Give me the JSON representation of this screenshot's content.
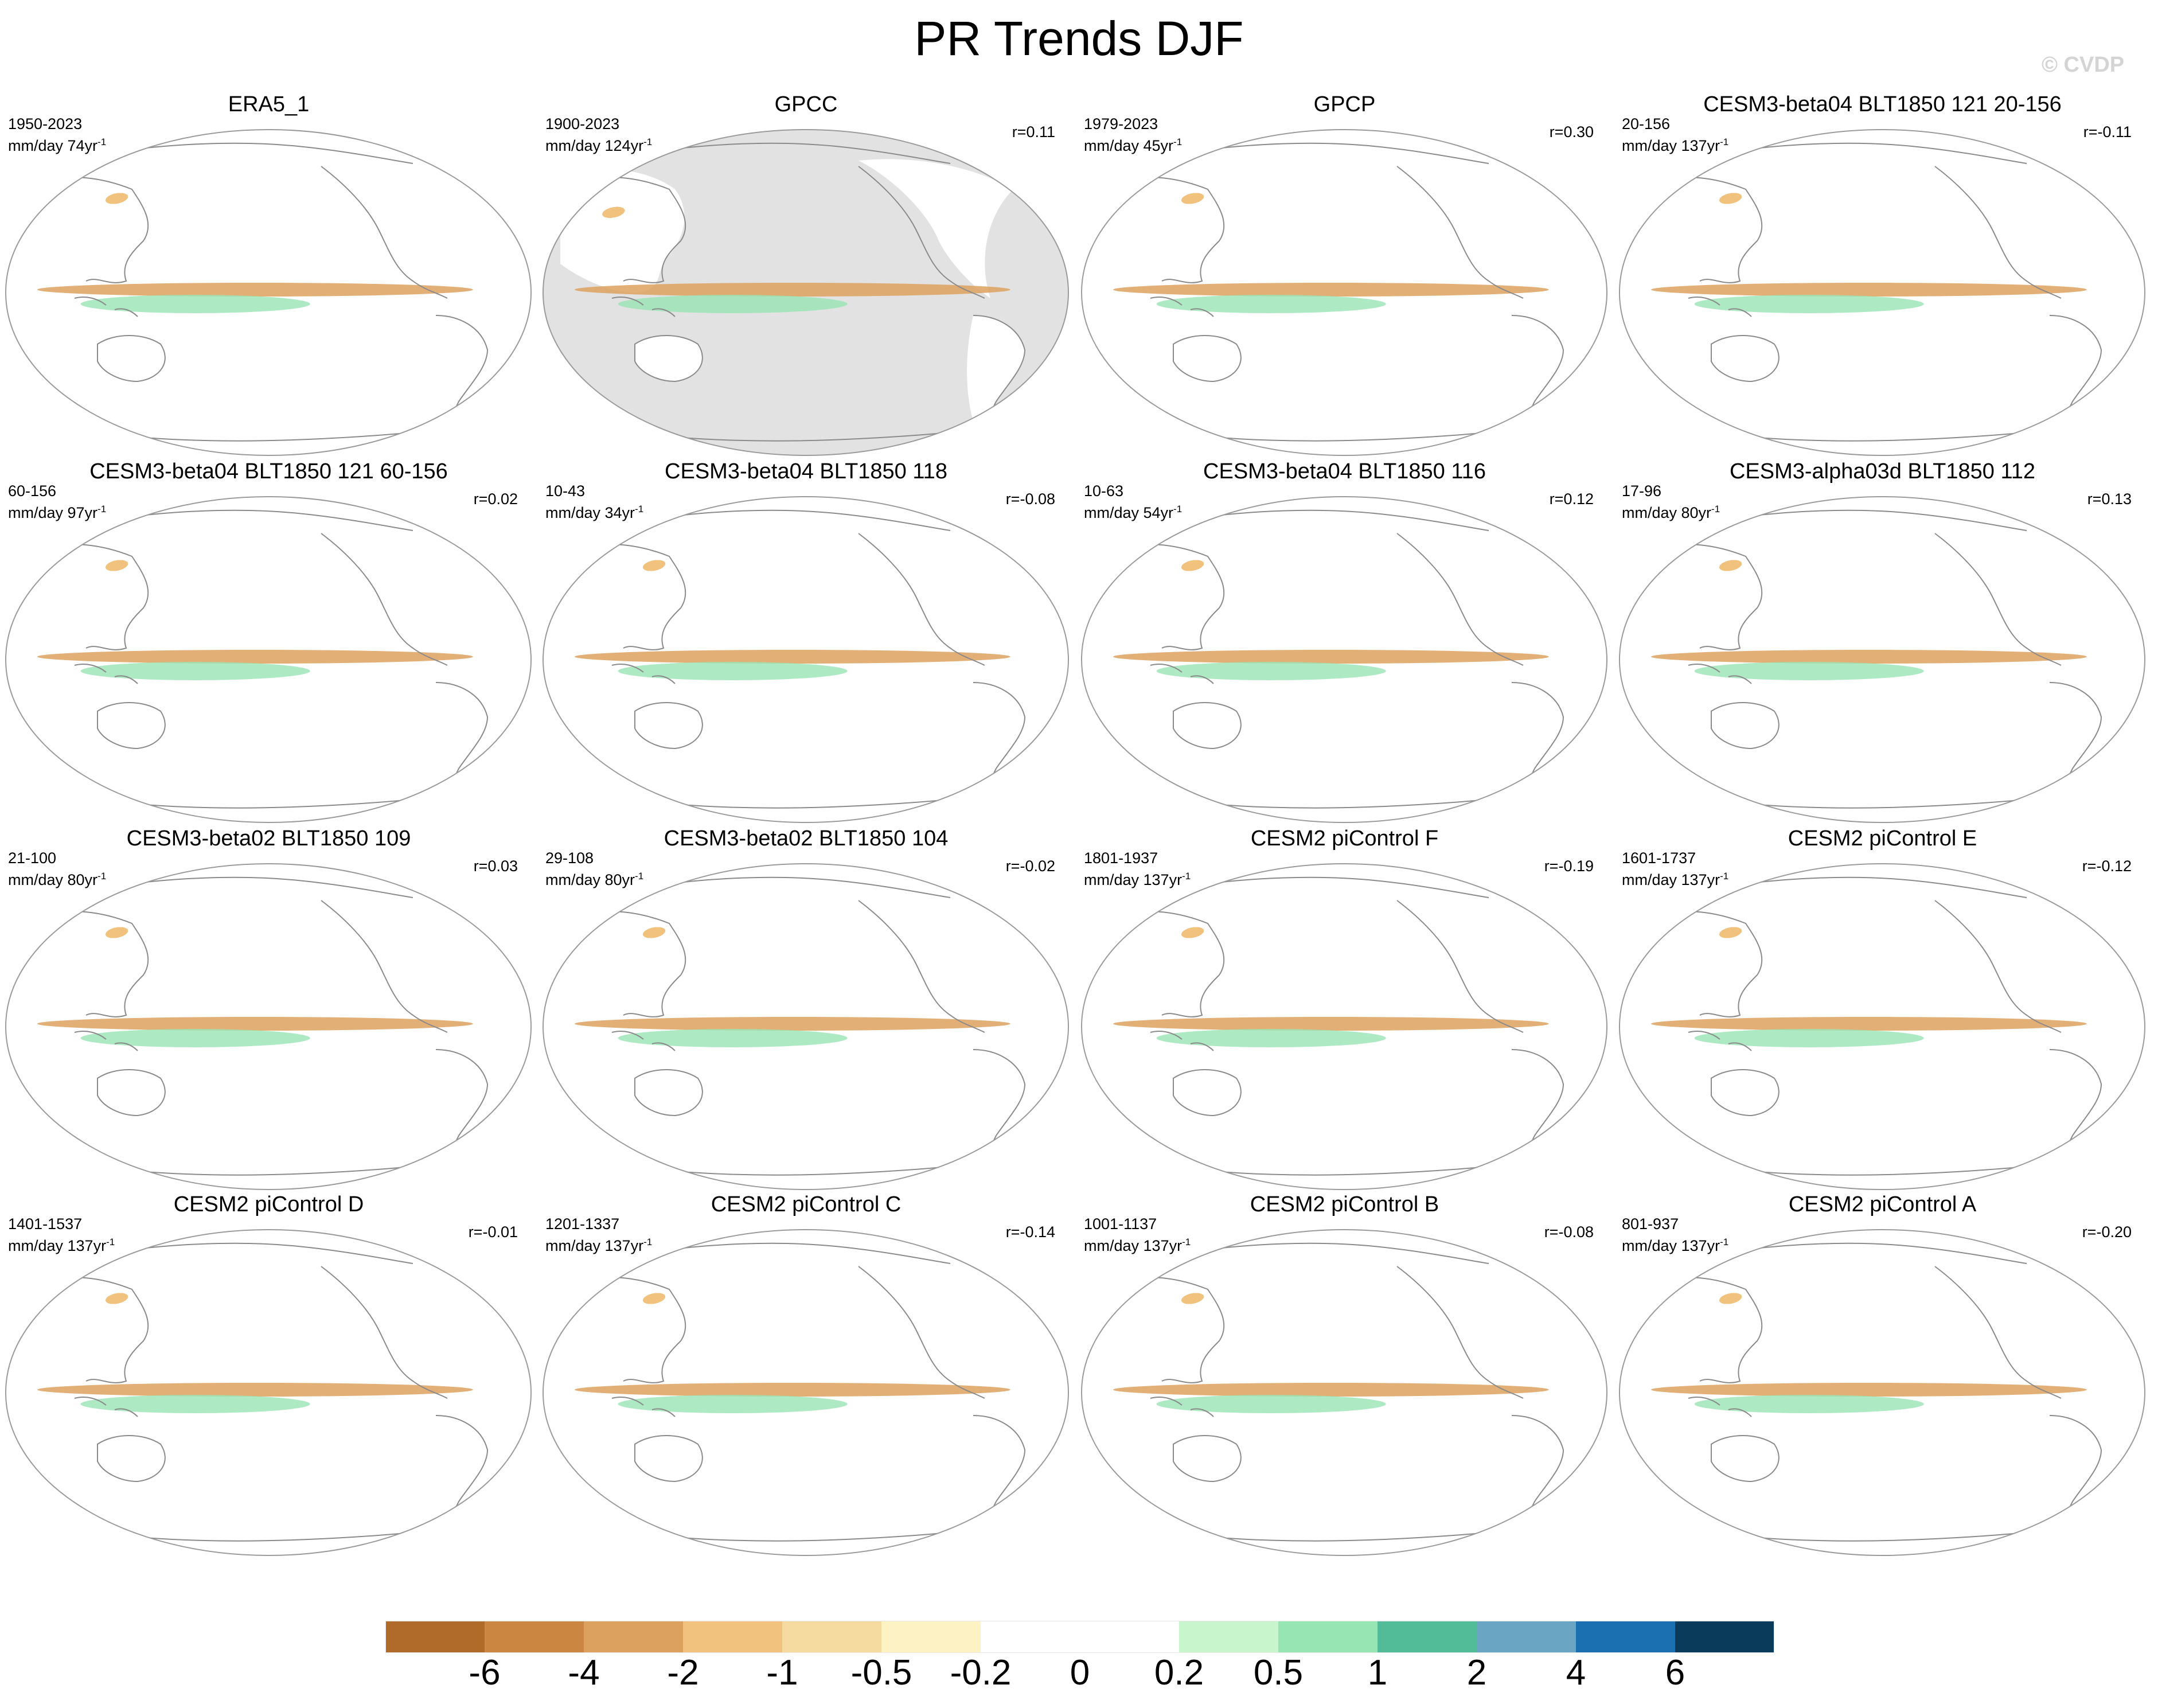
{
  "title": "PR Trends DJF",
  "watermark": "© CVDP",
  "panels": [
    {
      "name": "ERA5_1",
      "period": "1950-2023",
      "units": "mm/day 74yr",
      "corr": "",
      "masked": false,
      "seed": 1
    },
    {
      "name": "GPCC",
      "period": "1900-2023",
      "units": "mm/day 124yr",
      "corr": "r=0.11",
      "masked": true,
      "seed": 2
    },
    {
      "name": "GPCP",
      "period": "1979-2023",
      "units": "mm/day 45yr",
      "corr": "r=0.30",
      "masked": false,
      "seed": 3
    },
    {
      "name": "CESM3-beta04 BLT1850 121 20-156",
      "period": "20-156",
      "units": "mm/day 137yr",
      "corr": "r=-0.11",
      "masked": false,
      "seed": 4
    },
    {
      "name": "CESM3-beta04 BLT1850 121 60-156",
      "period": "60-156",
      "units": "mm/day 97yr",
      "corr": "r=0.02",
      "masked": false,
      "seed": 5
    },
    {
      "name": "CESM3-beta04 BLT1850 118",
      "period": "10-43",
      "units": "mm/day 34yr",
      "corr": "r=-0.08",
      "masked": false,
      "seed": 6
    },
    {
      "name": "CESM3-beta04 BLT1850 116",
      "period": "10-63",
      "units": "mm/day 54yr",
      "corr": "r=0.12",
      "masked": false,
      "seed": 7
    },
    {
      "name": "CESM3-alpha03d BLT1850 112",
      "period": "17-96",
      "units": "mm/day 80yr",
      "corr": "r=0.13",
      "masked": false,
      "seed": 8
    },
    {
      "name": "CESM3-beta02 BLT1850 109",
      "period": "21-100",
      "units": "mm/day 80yr",
      "corr": "r=0.03",
      "masked": false,
      "seed": 9
    },
    {
      "name": "CESM3-beta02 BLT1850 104",
      "period": "29-108",
      "units": "mm/day 80yr",
      "corr": "r=-0.02",
      "masked": false,
      "seed": 10
    },
    {
      "name": "CESM2 piControl F",
      "period": "1801-1937",
      "units": "mm/day 137yr",
      "corr": "r=-0.19",
      "masked": false,
      "seed": 11
    },
    {
      "name": "CESM2 piControl E",
      "period": "1601-1737",
      "units": "mm/day 137yr",
      "corr": "r=-0.12",
      "masked": false,
      "seed": 12
    },
    {
      "name": "CESM2 piControl D",
      "period": "1401-1537",
      "units": "mm/day 137yr",
      "corr": "r=-0.01",
      "masked": false,
      "seed": 13
    },
    {
      "name": "CESM2 piControl C",
      "period": "1201-1337",
      "units": "mm/day 137yr",
      "corr": "r=-0.14",
      "masked": false,
      "seed": 14
    },
    {
      "name": "CESM2 piControl B",
      "period": "1001-1137",
      "units": "mm/day 137yr",
      "corr": "r=-0.08",
      "masked": false,
      "seed": 15
    },
    {
      "name": "CESM2 piControl A",
      "period": "801-937",
      "units": "mm/day 137yr",
      "corr": "r=-0.20",
      "masked": false,
      "seed": 16
    }
  ],
  "colorbar": {
    "colors": [
      "#b06a2a",
      "#cb8742",
      "#dda15f",
      "#f1c27d",
      "#f6dba0",
      "#fcf2c3",
      "#ffffff",
      "#ffffff",
      "#c8f5cc",
      "#98e5b4",
      "#52bb98",
      "#6aa6c4",
      "#1a70b0",
      "#0a3b5a"
    ],
    "labels": [
      "-6",
      "-4",
      "-2",
      "-1",
      "-0.5",
      "-0.2",
      "0",
      "0.2",
      "0.5",
      "1",
      "2",
      "4",
      "6"
    ]
  }
}
